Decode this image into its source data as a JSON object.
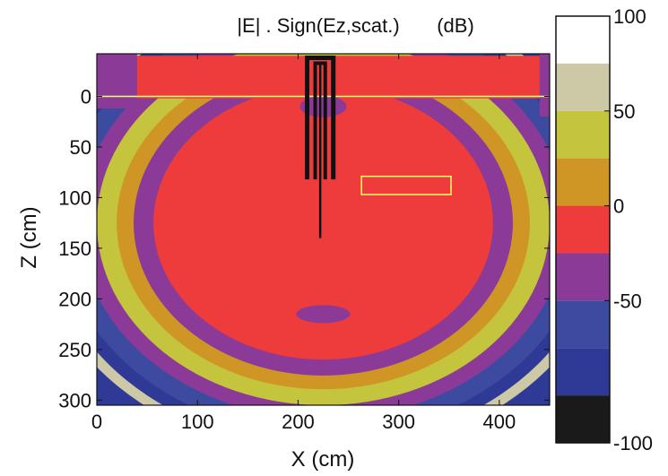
{
  "chart_data": {
    "type": "heatmap",
    "title": "|E| . Sign(Ez,scat.)",
    "title_unit": "(dB)",
    "xlabel": "X (cm)",
    "ylabel": "Z (cm)",
    "xlim": [
      0,
      450
    ],
    "ylim": [
      305,
      -42
    ],
    "y_axis_direction": "down",
    "x_ticks": [
      "0",
      "100",
      "200",
      "300",
      "400"
    ],
    "y_ticks": [
      "0",
      "50",
      "100",
      "150",
      "200",
      "250",
      "300"
    ],
    "colorbar": {
      "range": [
        -100,
        100
      ],
      "ticks": [
        "100",
        "50",
        "0",
        "-50",
        "-100"
      ],
      "levels": [
        {
          "from": 75,
          "to": 100,
          "color": "#ffffff"
        },
        {
          "from": 50,
          "to": 75,
          "color": "#cdc9a6"
        },
        {
          "from": 25,
          "to": 50,
          "color": "#c5c43d"
        },
        {
          "from": 0,
          "to": 25,
          "color": "#cf9626"
        },
        {
          "from": -25,
          "to": 0,
          "color": "#ee3b3b"
        },
        {
          "from": -50,
          "to": -25,
          "color": "#8b3a98"
        },
        {
          "from": -75,
          "to": -50,
          "color": "#3c4aa0"
        },
        {
          "from": -100,
          "to": -75,
          "color": "#2e3a95"
        },
        {
          "from": -125,
          "to": -100,
          "color": "#1a1a1a"
        }
      ]
    },
    "bands": [
      {
        "name": "outer-gray",
        "radius": 1.02,
        "color": "#cdc9a6"
      },
      {
        "name": "navy",
        "radius": 0.98,
        "color": "#2e3a95"
      },
      {
        "name": "blue",
        "radius": 0.93,
        "color": "#3c4aa0"
      },
      {
        "name": "purple-outer",
        "radius": 0.86,
        "color": "#8b3a98"
      },
      {
        "name": "yellow",
        "radius": 0.8,
        "color": "#c5c43d"
      },
      {
        "name": "orange",
        "radius": 0.73,
        "color": "#cf9626"
      },
      {
        "name": "purple-mid",
        "radius": 0.67,
        "color": "#8b3a98"
      },
      {
        "name": "core-red",
        "radius": 0.6,
        "color": "#ee3b3b"
      }
    ],
    "field_center": [
      225,
      125
    ],
    "field_scale": [
      225,
      180
    ],
    "surface_line": {
      "z": 0,
      "color": "#ffff66"
    },
    "target_box": {
      "x": [
        263,
        352
      ],
      "z": [
        79,
        97
      ],
      "color": "#ffff66"
    },
    "antenna": {
      "x_center": 222,
      "outer_width": 26,
      "z_top": -38,
      "z_bottom": 82,
      "probe_z_bottom": 140
    }
  }
}
